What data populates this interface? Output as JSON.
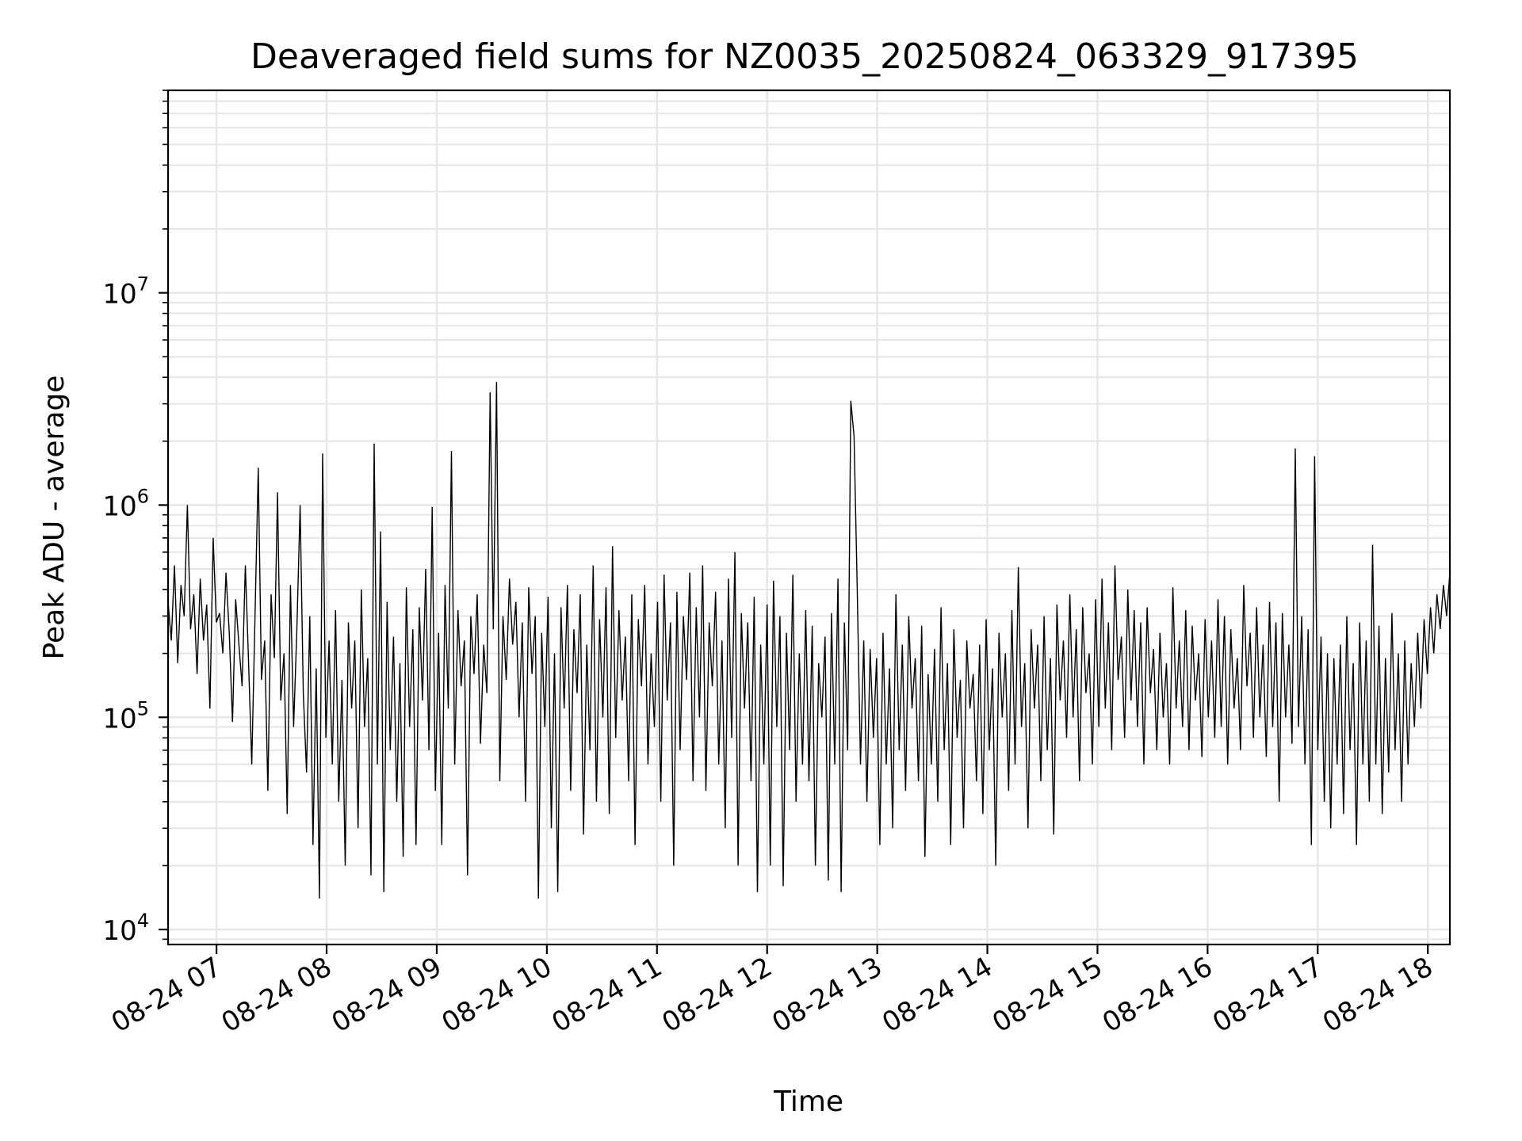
{
  "chart_data": {
    "type": "line",
    "title": "Deaveraged field sums for NZ0035_20250824_063329_917395",
    "xlabel": "Time",
    "ylabel": "Peak ADU - average",
    "x_tick_labels": [
      "08-24 07",
      "08-24 08",
      "08-24 09",
      "08-24 10",
      "08-24 11",
      "08-24 12",
      "08-24 13",
      "08-24 14",
      "08-24 15",
      "08-24 16",
      "08-24 17",
      "08-24 18"
    ],
    "x_ticks_hours": [
      7,
      8,
      9,
      10,
      11,
      12,
      13,
      14,
      15,
      16,
      17,
      18
    ],
    "xlim_hours": [
      6.56,
      18.2
    ],
    "x_tick_note": "dates 2025-08-24, hours of day",
    "yscale": "log",
    "ylim": [
      8500,
      90000000
    ],
    "y_ticks": [
      10000,
      100000,
      1000000,
      10000000
    ],
    "y_tick_labels": [
      {
        "base": "10",
        "exp": "4"
      },
      {
        "base": "10",
        "exp": "5"
      },
      {
        "base": "10",
        "exp": "6"
      },
      {
        "base": "10",
        "exp": "7"
      }
    ],
    "grid": true,
    "line_color": "#000000",
    "grid_color": "#e6e6e6",
    "series": [
      {
        "x_start_hour": 6.56,
        "x_end_hour": 18.2,
        "values": [
          350000,
          230000,
          520000,
          180000,
          420000,
          300000,
          1000000,
          260000,
          380000,
          160000,
          450000,
          230000,
          340000,
          110000,
          700000,
          280000,
          310000,
          200000,
          480000,
          250000,
          95000,
          360000,
          220000,
          140000,
          520000,
          180000,
          60000,
          300000,
          1500000,
          150000,
          230000,
          45000,
          380000,
          190000,
          1150000,
          120000,
          200000,
          35000,
          420000,
          90000,
          260000,
          1000000,
          130000,
          55000,
          300000,
          25000,
          170000,
          14000,
          1750000,
          80000,
          230000,
          60000,
          320000,
          40000,
          150000,
          20000,
          280000,
          110000,
          230000,
          30000,
          400000,
          90000,
          190000,
          18000,
          1950000,
          60000,
          750000,
          15000,
          350000,
          70000,
          240000,
          40000,
          180000,
          22000,
          410000,
          90000,
          260000,
          25000,
          330000,
          120000,
          500000,
          70000,
          980000,
          45000,
          250000,
          25000,
          420000,
          110000,
          1800000,
          60000,
          320000,
          140000,
          230000,
          18000,
          300000,
          160000,
          380000,
          75000,
          220000,
          130000,
          3400000,
          260000,
          3800000,
          50000,
          300000,
          150000,
          450000,
          220000,
          350000,
          100000,
          280000,
          40000,
          410000,
          160000,
          300000,
          14000,
          250000,
          90000,
          370000,
          30000,
          200000,
          15000,
          330000,
          110000,
          420000,
          45000,
          260000,
          130000,
          380000,
          28000,
          220000,
          70000,
          520000,
          40000,
          290000,
          100000,
          410000,
          35000,
          640000,
          80000,
          320000,
          120000,
          240000,
          50000,
          380000,
          25000,
          290000,
          140000,
          420000,
          60000,
          200000,
          90000,
          350000,
          40000,
          470000,
          120000,
          280000,
          20000,
          390000,
          70000,
          300000,
          150000,
          480000,
          50000,
          330000,
          100000,
          520000,
          45000,
          280000,
          140000,
          390000,
          60000,
          230000,
          30000,
          450000,
          80000,
          600000,
          20000,
          310000,
          110000,
          280000,
          50000,
          370000,
          15000,
          220000,
          60000,
          340000,
          20000,
          440000,
          90000,
          300000,
          16000,
          250000,
          70000,
          470000,
          40000,
          200000,
          60000,
          320000,
          50000,
          270000,
          20000,
          180000,
          100000,
          240000,
          17000,
          310000,
          60000,
          450000,
          15000,
          280000,
          70000,
          3100000,
          2100000,
          400000,
          60000,
          230000,
          40000,
          210000,
          80000,
          190000,
          25000,
          250000,
          60000,
          170000,
          30000,
          380000,
          70000,
          220000,
          45000,
          300000,
          110000,
          190000,
          50000,
          270000,
          22000,
          160000,
          60000,
          210000,
          40000,
          330000,
          70000,
          180000,
          25000,
          260000,
          80000,
          150000,
          30000,
          230000,
          110000,
          160000,
          50000,
          220000,
          35000,
          290000,
          70000,
          170000,
          20000,
          250000,
          100000,
          200000,
          45000,
          320000,
          60000,
          510000,
          90000,
          180000,
          30000,
          260000,
          110000,
          220000,
          50000,
          300000,
          70000,
          190000,
          28000,
          340000,
          120000,
          230000,
          80000,
          380000,
          100000,
          260000,
          50000,
          330000,
          130000,
          200000,
          60000,
          360000,
          90000,
          450000,
          110000,
          280000,
          70000,
          520000,
          150000,
          240000,
          80000,
          400000,
          120000,
          320000,
          90000,
          280000,
          60000,
          330000,
          130000,
          210000,
          70000,
          250000,
          100000,
          180000,
          60000,
          410000,
          110000,
          230000,
          90000,
          320000,
          70000,
          270000,
          120000,
          200000,
          65000,
          290000,
          100000,
          230000,
          80000,
          360000,
          90000,
          300000,
          60000,
          260000,
          110000,
          190000,
          70000,
          420000,
          140000,
          250000,
          80000,
          330000,
          100000,
          220000,
          65000,
          350000,
          90000,
          280000,
          40000,
          310000,
          100000,
          220000,
          75000,
          1850000,
          90000,
          300000,
          60000,
          260000,
          25000,
          1700000,
          70000,
          240000,
          40000,
          200000,
          30000,
          190000,
          60000,
          220000,
          35000,
          300000,
          70000,
          180000,
          25000,
          280000,
          60000,
          230000,
          40000,
          650000,
          60000,
          270000,
          35000,
          190000,
          55000,
          310000,
          70000,
          200000,
          40000,
          230000,
          60000,
          180000,
          90000,
          250000,
          110000,
          290000,
          160000,
          330000,
          200000,
          380000,
          260000,
          420000,
          300000,
          480000
        ]
      }
    ]
  }
}
